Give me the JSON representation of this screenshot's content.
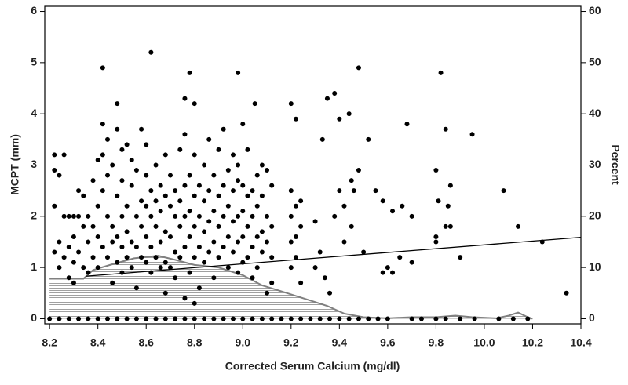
{
  "chart_data": {
    "type": "scatter",
    "xlabel": "Corrected Serum Calcium (mg/dl)",
    "ylabel": "MCPT (mm)",
    "y2label": "Percent",
    "xlim": [
      8.18,
      10.4
    ],
    "xticks": [
      8.2,
      8.4,
      8.6,
      8.8,
      {
        "value": 9.0,
        "label": "9.0"
      },
      9.2,
      9.4,
      9.6,
      9.8,
      {
        "value": 10.0,
        "label": "10.0"
      },
      10.2,
      10.4
    ],
    "ylim": [
      -0.1,
      6.1
    ],
    "yticks": [
      0,
      1,
      2,
      3,
      4,
      5,
      6
    ],
    "y2lim": [
      -1,
      61
    ],
    "y2ticks": [
      0,
      10,
      20,
      30,
      40,
      50,
      60
    ],
    "color": "#000000",
    "fit": {
      "color": "#000000",
      "x": [
        8.35,
        10.4
      ],
      "values": [
        0.83,
        1.59
      ]
    },
    "density": {
      "axis": "y2",
      "color": "#808080",
      "x": [
        8.2,
        8.34,
        8.38,
        8.45,
        8.55,
        8.65,
        8.72,
        8.8,
        8.9,
        9.0,
        9.08,
        9.15,
        9.25,
        9.35,
        9.42,
        9.5,
        9.6,
        9.7,
        9.8,
        9.88,
        9.95,
        10.05,
        10.1,
        10.14,
        10.18,
        10.2
      ],
      "values": [
        7.8,
        7.8,
        9.5,
        10.5,
        11.8,
        12.3,
        11.5,
        10.5,
        10,
        8.5,
        6.5,
        5.5,
        4,
        2.5,
        1,
        0.3,
        0.1,
        0.3,
        0.3,
        0.6,
        0.3,
        0.1,
        0.6,
        1.2,
        0.3,
        0
      ]
    },
    "points": [
      [
        8.42,
        4.9
      ],
      [
        8.62,
        5.2
      ],
      [
        8.78,
        4.8
      ],
      [
        8.98,
        4.8
      ],
      [
        9.48,
        4.9
      ],
      [
        9.82,
        4.8
      ],
      [
        8.48,
        4.2
      ],
      [
        8.76,
        4.3
      ],
      [
        8.8,
        4.2
      ],
      [
        9.05,
        4.2
      ],
      [
        9.2,
        4.2
      ],
      [
        9.35,
        4.3
      ],
      [
        9.38,
        4.4
      ],
      [
        9.22,
        3.9
      ],
      [
        9.4,
        3.9
      ],
      [
        9.44,
        4.0
      ],
      [
        9.68,
        3.8
      ],
      [
        9.84,
        3.7
      ],
      [
        9.95,
        3.6
      ],
      [
        9.52,
        3.5
      ],
      [
        9.33,
        3.5
      ],
      [
        9.48,
        2.9
      ],
      [
        9.46,
        2.5
      ],
      [
        9.55,
        2.5
      ],
      [
        9.58,
        2.3
      ],
      [
        9.62,
        2.1
      ],
      [
        9.66,
        2.2
      ],
      [
        9.7,
        2.0
      ],
      [
        9.8,
        2.9
      ],
      [
        9.81,
        2.3
      ],
      [
        9.86,
        2.6
      ],
      [
        9.85,
        2.2
      ],
      [
        9.86,
        1.8
      ],
      [
        9.84,
        1.8
      ],
      [
        9.8,
        1.6
      ],
      [
        9.8,
        1.5
      ],
      [
        9.9,
        1.2
      ],
      [
        10.08,
        2.5
      ],
      [
        10.14,
        1.8
      ],
      [
        10.24,
        1.5
      ],
      [
        10.34,
        0.5
      ],
      [
        9.6,
        1.0
      ],
      [
        9.62,
        0.9
      ],
      [
        9.58,
        0.9
      ],
      [
        9.7,
        1.1
      ],
      [
        9.65,
        1.2
      ],
      [
        9.5,
        1.3
      ],
      [
        9.42,
        1.5
      ],
      [
        9.45,
        1.8
      ],
      [
        9.38,
        2.0
      ],
      [
        9.42,
        2.2
      ],
      [
        9.4,
        2.5
      ],
      [
        9.45,
        2.7
      ],
      [
        9.3,
        1.9
      ],
      [
        9.32,
        1.3
      ],
      [
        9.3,
        1.0
      ],
      [
        9.34,
        0.8
      ],
      [
        9.36,
        0.5
      ],
      [
        8.22,
        3.2
      ],
      [
        8.22,
        2.9
      ],
      [
        8.22,
        2.2
      ],
      [
        8.22,
        1.3
      ],
      [
        8.24,
        2.8
      ],
      [
        8.24,
        1.5
      ],
      [
        8.24,
        1.0
      ],
      [
        8.26,
        3.2
      ],
      [
        8.26,
        2.0
      ],
      [
        8.26,
        1.2
      ],
      [
        8.28,
        2.0
      ],
      [
        8.28,
        1.4
      ],
      [
        8.28,
        0.8
      ],
      [
        8.3,
        2.0
      ],
      [
        8.3,
        1.6
      ],
      [
        8.3,
        1.1
      ],
      [
        8.3,
        0.7
      ],
      [
        8.32,
        2.5
      ],
      [
        8.32,
        2.0
      ],
      [
        8.32,
        1.3
      ],
      [
        8.34,
        2.4
      ],
      [
        8.34,
        1.8
      ],
      [
        8.34,
        1.0
      ],
      [
        8.36,
        2.0
      ],
      [
        8.36,
        1.5
      ],
      [
        8.36,
        0.9
      ],
      [
        8.38,
        2.7
      ],
      [
        8.38,
        1.8
      ],
      [
        8.38,
        1.2
      ],
      [
        8.4,
        3.1
      ],
      [
        8.4,
        2.2
      ],
      [
        8.4,
        1.6
      ],
      [
        8.4,
        1.0
      ],
      [
        8.42,
        3.8
      ],
      [
        8.42,
        3.2
      ],
      [
        8.42,
        2.5
      ],
      [
        8.42,
        1.4
      ],
      [
        8.44,
        3.5
      ],
      [
        8.44,
        2.8
      ],
      [
        8.44,
        2.0
      ],
      [
        8.44,
        1.2
      ],
      [
        8.46,
        3.0
      ],
      [
        8.46,
        1.8
      ],
      [
        8.46,
        1.5
      ],
      [
        8.46,
        0.7
      ],
      [
        8.48,
        3.7
      ],
      [
        8.48,
        2.4
      ],
      [
        8.48,
        1.6
      ],
      [
        8.48,
        1.1
      ],
      [
        8.5,
        3.3
      ],
      [
        8.5,
        2.7
      ],
      [
        8.5,
        2.0
      ],
      [
        8.5,
        1.4
      ],
      [
        8.5,
        0.9
      ],
      [
        8.52,
        3.4
      ],
      [
        8.52,
        2.2
      ],
      [
        8.52,
        1.7
      ],
      [
        8.52,
        1.2
      ],
      [
        8.54,
        3.1
      ],
      [
        8.54,
        2.6
      ],
      [
        8.54,
        1.5
      ],
      [
        8.54,
        1.0
      ],
      [
        8.56,
        2.9
      ],
      [
        8.56,
        2.0
      ],
      [
        8.56,
        1.4
      ],
      [
        8.56,
        0.6
      ],
      [
        8.58,
        3.7
      ],
      [
        8.58,
        2.3
      ],
      [
        8.58,
        1.8
      ],
      [
        8.58,
        1.2
      ],
      [
        8.6,
        3.4
      ],
      [
        8.6,
        2.8
      ],
      [
        8.6,
        2.2
      ],
      [
        8.6,
        1.6
      ],
      [
        8.6,
        1.1
      ],
      [
        8.62,
        2.5
      ],
      [
        8.62,
        2.0
      ],
      [
        8.62,
        1.4
      ],
      [
        8.62,
        0.9
      ],
      [
        8.64,
        3.0
      ],
      [
        8.64,
        2.3
      ],
      [
        8.64,
        1.8
      ],
      [
        8.64,
        1.2
      ],
      [
        8.66,
        2.6
      ],
      [
        8.66,
        2.1
      ],
      [
        8.66,
        1.5
      ],
      [
        8.66,
        1.0
      ],
      [
        8.68,
        3.2
      ],
      [
        8.68,
        2.4
      ],
      [
        8.68,
        1.7
      ],
      [
        8.68,
        1.1
      ],
      [
        8.68,
        0.5
      ],
      [
        8.7,
        2.8
      ],
      [
        8.7,
        2.2
      ],
      [
        8.7,
        1.6
      ],
      [
        8.7,
        1.0
      ],
      [
        8.72,
        2.5
      ],
      [
        8.72,
        2.0
      ],
      [
        8.72,
        1.3
      ],
      [
        8.72,
        0.8
      ],
      [
        8.74,
        3.3
      ],
      [
        8.74,
        2.3
      ],
      [
        8.74,
        1.8
      ],
      [
        8.74,
        1.2
      ],
      [
        8.76,
        3.6
      ],
      [
        8.76,
        2.6
      ],
      [
        8.76,
        2.0
      ],
      [
        8.76,
        1.4
      ],
      [
        8.76,
        0.4
      ],
      [
        8.78,
        2.8
      ],
      [
        8.78,
        2.1
      ],
      [
        8.78,
        1.6
      ],
      [
        8.78,
        0.9
      ],
      [
        8.8,
        3.2
      ],
      [
        8.8,
        2.4
      ],
      [
        8.8,
        1.8
      ],
      [
        8.8,
        1.2
      ],
      [
        8.8,
        0.3
      ],
      [
        8.82,
        2.6
      ],
      [
        8.82,
        2.0
      ],
      [
        8.82,
        1.4
      ],
      [
        8.82,
        0.6
      ],
      [
        8.84,
        3.0
      ],
      [
        8.84,
        2.3
      ],
      [
        8.84,
        1.7
      ],
      [
        8.84,
        1.1
      ],
      [
        8.86,
        3.5
      ],
      [
        8.86,
        2.5
      ],
      [
        8.86,
        1.9
      ],
      [
        8.86,
        1.3
      ],
      [
        8.88,
        2.8
      ],
      [
        8.88,
        2.1
      ],
      [
        8.88,
        1.5
      ],
      [
        8.88,
        0.8
      ],
      [
        8.9,
        3.3
      ],
      [
        8.9,
        2.4
      ],
      [
        8.9,
        1.8
      ],
      [
        8.9,
        1.2
      ],
      [
        8.92,
        3.7
      ],
      [
        8.92,
        2.6
      ],
      [
        8.92,
        2.0
      ],
      [
        8.92,
        1.4
      ],
      [
        8.94,
        2.9
      ],
      [
        8.94,
        2.2
      ],
      [
        8.94,
        1.6
      ],
      [
        8.94,
        1.0
      ],
      [
        8.96,
        3.2
      ],
      [
        8.96,
        2.5
      ],
      [
        8.96,
        1.9
      ],
      [
        8.96,
        1.3
      ],
      [
        8.98,
        3.0
      ],
      [
        8.98,
        2.7
      ],
      [
        8.98,
        2.0
      ],
      [
        8.98,
        1.5
      ],
      [
        8.98,
        0.9
      ],
      [
        9.0,
        3.8
      ],
      [
        9.0,
        2.6
      ],
      [
        9.0,
        2.1
      ],
      [
        9.0,
        1.6
      ],
      [
        9.0,
        1.1
      ],
      [
        9.02,
        3.3
      ],
      [
        9.02,
        2.4
      ],
      [
        9.02,
        1.8
      ],
      [
        9.02,
        1.2
      ],
      [
        9.04,
        2.5
      ],
      [
        9.04,
        2.0
      ],
      [
        9.04,
        1.4
      ],
      [
        9.04,
        0.8
      ],
      [
        9.06,
        2.8
      ],
      [
        9.06,
        2.2
      ],
      [
        9.06,
        1.6
      ],
      [
        9.06,
        1.0
      ],
      [
        9.08,
        3.0
      ],
      [
        9.08,
        2.4
      ],
      [
        9.08,
        1.7
      ],
      [
        9.08,
        1.3
      ],
      [
        9.1,
        2.9
      ],
      [
        9.1,
        2.0
      ],
      [
        9.1,
        1.5
      ],
      [
        9.1,
        0.5
      ],
      [
        9.12,
        2.6
      ],
      [
        9.12,
        1.8
      ],
      [
        9.12,
        1.2
      ],
      [
        9.12,
        0.7
      ],
      [
        9.2,
        2.5
      ],
      [
        9.2,
        2.0
      ],
      [
        9.2,
        1.5
      ],
      [
        9.2,
        1.0
      ],
      [
        9.22,
        2.2
      ],
      [
        9.22,
        1.6
      ],
      [
        9.22,
        1.2
      ],
      [
        9.24,
        2.3
      ],
      [
        9.24,
        1.8
      ],
      [
        9.24,
        0.7
      ],
      [
        8.2,
        0
      ],
      [
        8.24,
        0
      ],
      [
        8.28,
        0
      ],
      [
        8.32,
        0
      ],
      [
        8.36,
        0
      ],
      [
        8.4,
        0
      ],
      [
        8.44,
        0
      ],
      [
        8.48,
        0
      ],
      [
        8.52,
        0
      ],
      [
        8.56,
        0
      ],
      [
        8.6,
        0
      ],
      [
        8.64,
        0
      ],
      [
        8.68,
        0
      ],
      [
        8.72,
        0
      ],
      [
        8.76,
        0
      ],
      [
        8.8,
        0
      ],
      [
        8.84,
        0
      ],
      [
        8.88,
        0
      ],
      [
        8.92,
        0
      ],
      [
        8.96,
        0
      ],
      [
        9.0,
        0
      ],
      [
        9.04,
        0
      ],
      [
        9.08,
        0
      ],
      [
        9.12,
        0
      ],
      [
        9.16,
        0
      ],
      [
        9.2,
        0
      ],
      [
        9.24,
        0
      ],
      [
        9.28,
        0
      ],
      [
        9.32,
        0
      ],
      [
        9.36,
        0
      ],
      [
        9.4,
        0
      ],
      [
        9.44,
        0
      ],
      [
        9.48,
        0
      ],
      [
        9.52,
        0
      ],
      [
        9.56,
        0
      ],
      [
        9.6,
        0
      ],
      [
        9.7,
        0
      ],
      [
        9.74,
        0
      ],
      [
        9.8,
        0
      ],
      [
        9.84,
        0
      ],
      [
        9.9,
        0
      ],
      [
        9.96,
        0
      ],
      [
        10.06,
        0
      ],
      [
        10.12,
        0
      ],
      [
        10.18,
        0
      ]
    ]
  }
}
